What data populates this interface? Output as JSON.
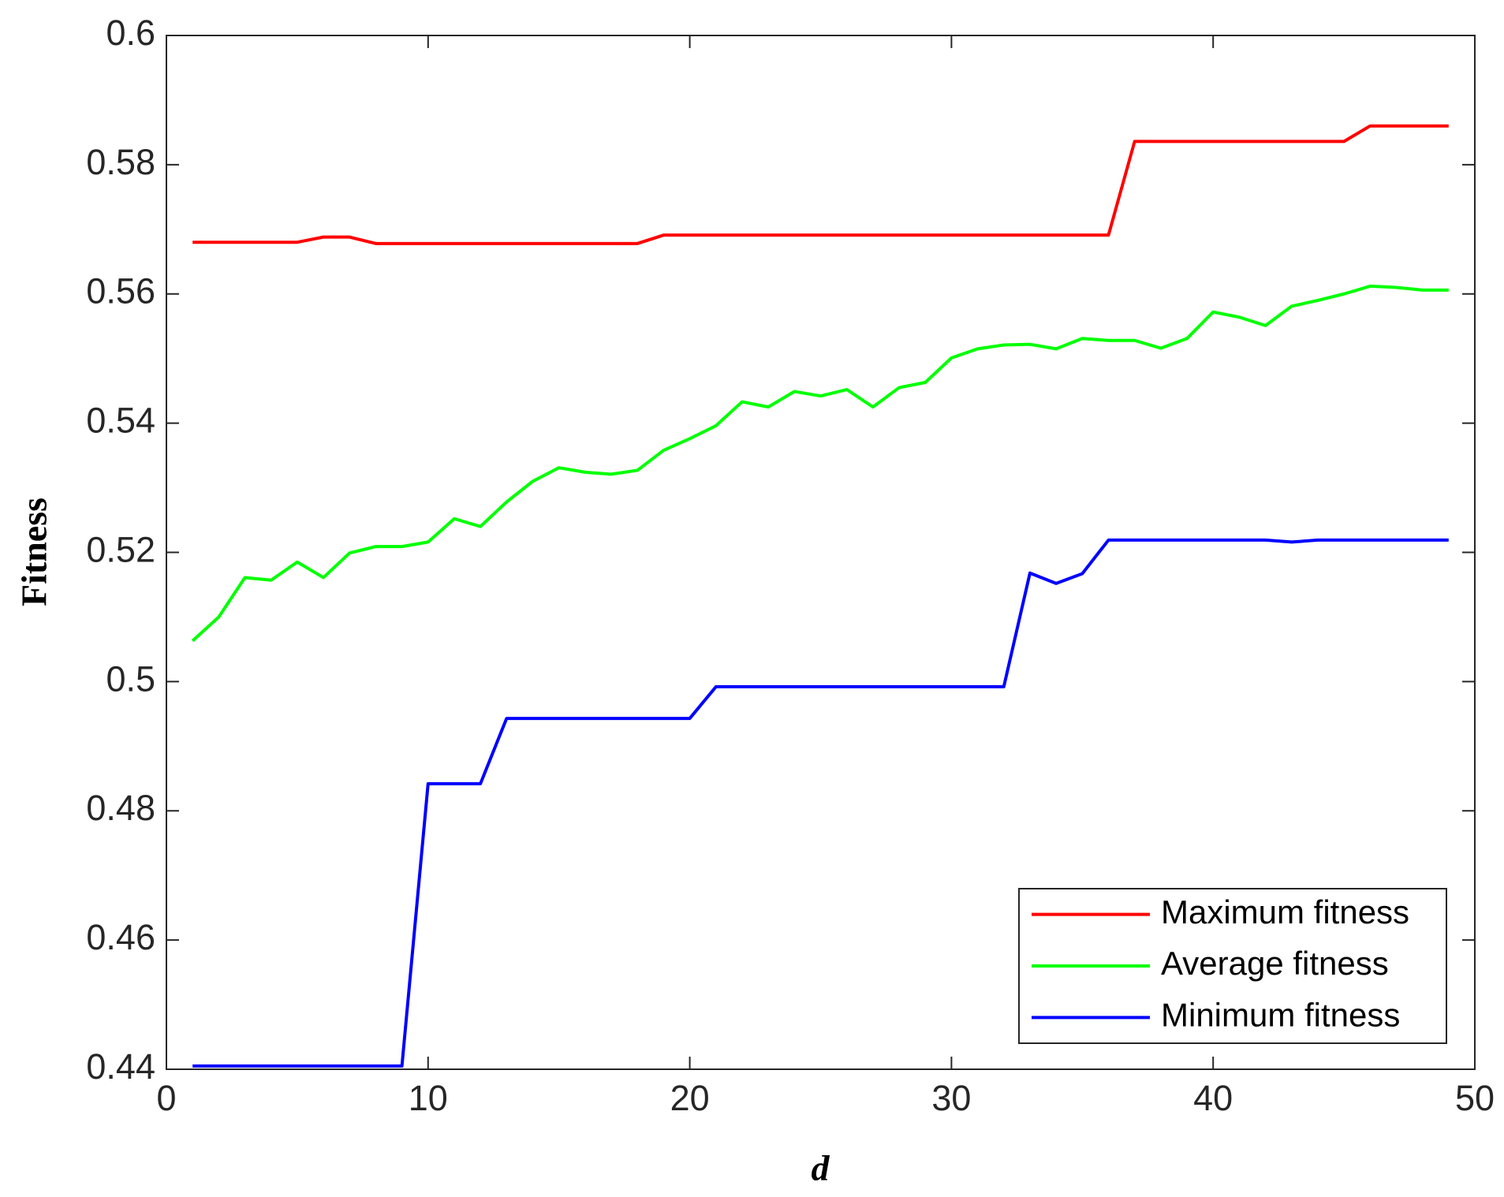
{
  "chart_data": {
    "type": "line",
    "xlabel": "d",
    "ylabel": "Fitness",
    "x": [
      1,
      2,
      3,
      4,
      5,
      6,
      7,
      8,
      9,
      10,
      11,
      12,
      13,
      14,
      15,
      16,
      17,
      18,
      19,
      20,
      21,
      22,
      23,
      24,
      25,
      26,
      27,
      28,
      29,
      30,
      31,
      32,
      33,
      34,
      35,
      36,
      37,
      38,
      39,
      40,
      41,
      42,
      43,
      44,
      45,
      46,
      47,
      48,
      49
    ],
    "series": [
      {
        "name": "Maximum fitness",
        "color": "#ff0000",
        "values": [
          0.568,
          0.568,
          0.568,
          0.568,
          0.568,
          0.5688,
          0.5688,
          0.5678,
          0.5678,
          0.5678,
          0.5678,
          0.5678,
          0.5678,
          0.5678,
          0.5678,
          0.5678,
          0.5678,
          0.5678,
          0.5691,
          0.5691,
          0.5691,
          0.5691,
          0.5691,
          0.5691,
          0.5691,
          0.5691,
          0.5691,
          0.5691,
          0.5691,
          0.5691,
          0.5691,
          0.5691,
          0.5691,
          0.5691,
          0.5691,
          0.5691,
          0.5836,
          0.5836,
          0.5836,
          0.5836,
          0.5836,
          0.5836,
          0.5836,
          0.5836,
          0.5836,
          0.586,
          0.586,
          0.586,
          0.586
        ]
      },
      {
        "name": "Average fitness",
        "color": "#00ff00",
        "values": [
          0.5063,
          0.51,
          0.5161,
          0.5157,
          0.5185,
          0.5161,
          0.5199,
          0.5209,
          0.5209,
          0.5216,
          0.5252,
          0.524,
          0.5278,
          0.531,
          0.5331,
          0.5324,
          0.5321,
          0.5327,
          0.5358,
          0.5376,
          0.5396,
          0.5433,
          0.5425,
          0.5449,
          0.5442,
          0.5452,
          0.5425,
          0.5455,
          0.5463,
          0.5501,
          0.5515,
          0.5521,
          0.5522,
          0.5515,
          0.5531,
          0.5528,
          0.5528,
          0.5516,
          0.5531,
          0.5572,
          0.5564,
          0.5551,
          0.5581,
          0.559,
          0.56,
          0.5612,
          0.561,
          0.5606,
          0.5606
        ]
      },
      {
        "name": "Minimum fitness",
        "color": "#0000ff",
        "values": [
          0.4405,
          0.4405,
          0.4405,
          0.4405,
          0.4405,
          0.4405,
          0.4405,
          0.4405,
          0.4405,
          0.4842,
          0.4842,
          0.4842,
          0.4943,
          0.4943,
          0.4943,
          0.4943,
          0.4943,
          0.4943,
          0.4943,
          0.4943,
          0.4992,
          0.4992,
          0.4992,
          0.4992,
          0.4992,
          0.4992,
          0.4992,
          0.4992,
          0.4992,
          0.4992,
          0.4992,
          0.4992,
          0.5168,
          0.5152,
          0.5167,
          0.5219,
          0.5219,
          0.5219,
          0.5219,
          0.5219,
          0.5219,
          0.5219,
          0.5216,
          0.5219,
          0.5219,
          0.5219,
          0.5219,
          0.5219,
          0.5219
        ]
      }
    ],
    "xlim": [
      0,
      50
    ],
    "xticks": [
      0,
      10,
      20,
      30,
      40,
      50
    ],
    "ylim": [
      0.44,
      0.6
    ],
    "yticks": [
      0.44,
      0.46,
      0.48,
      0.5,
      0.52,
      0.54,
      0.56,
      0.58,
      0.6
    ],
    "legend": "lower right",
    "grid": false
  }
}
